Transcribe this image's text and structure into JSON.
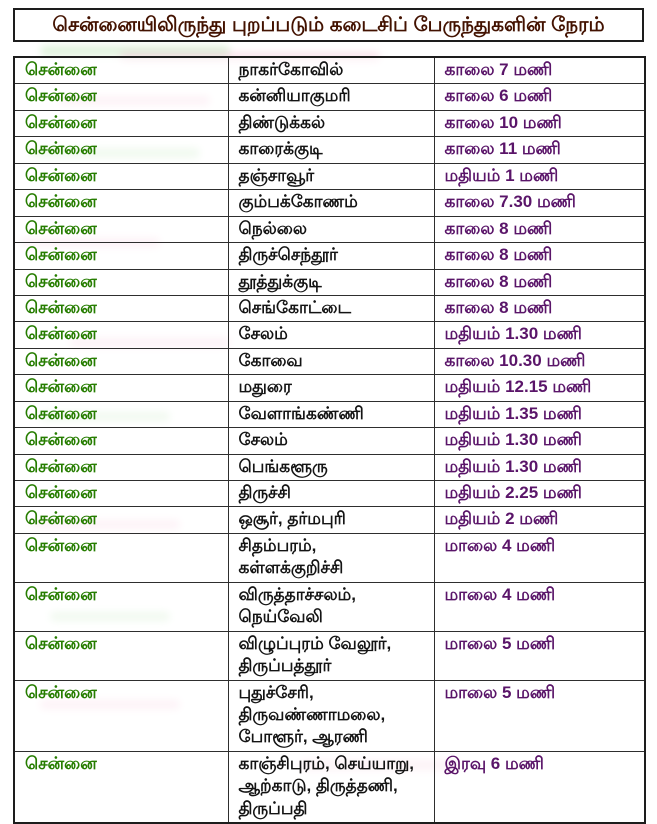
{
  "page": {
    "title": "சென்னையிலிருந்து புறப்படும் கடைசிப் பேருந்துகளின் நேரம்"
  },
  "colors": {
    "title_text": "#431200",
    "origin_text": "#267d00",
    "destination_text": "#141414",
    "time_text": "#5a1569"
  },
  "table": {
    "rows": [
      {
        "from": "சென்னை",
        "to": "நாகர்கோவில்",
        "time": "காலை 7 மணி"
      },
      {
        "from": "சென்னை",
        "to": "கன்னியாகுமரி",
        "time": "காலை 6 மணி"
      },
      {
        "from": "சென்னை",
        "to": "திண்டுக்கல்",
        "time": "காலை 10 மணி"
      },
      {
        "from": "சென்னை",
        "to": "காரைக்குடி",
        "time": "காலை 11 மணி"
      },
      {
        "from": "சென்னை",
        "to": "தஞ்சாவூர்",
        "time": "மதியம் 1 மணி"
      },
      {
        "from": "சென்னை",
        "to": "கும்பக்கோணம்",
        "time": "காலை 7.30 மணி"
      },
      {
        "from": "சென்னை",
        "to": "நெல்லை",
        "time": "காலை 8 மணி"
      },
      {
        "from": "சென்னை",
        "to": "திருச்செந்தூர்",
        "time": "காலை 8 மணி"
      },
      {
        "from": "சென்னை",
        "to": "தூத்துக்குடி",
        "time": "காலை 8 மணி"
      },
      {
        "from": "சென்னை",
        "to": "செங்கோட்டை",
        "time": "காலை 8 மணி"
      },
      {
        "from": "சென்னை",
        "to": "சேலம்",
        "time": "மதியம் 1.30 மணி"
      },
      {
        "from": "சென்னை",
        "to": "கோவை",
        "time": "காலை 10.30 மணி"
      },
      {
        "from": "சென்னை",
        "to": "மதுரை",
        "time": "மதியம் 12.15 மணி"
      },
      {
        "from": "சென்னை",
        "to": "வேளாங்கண்ணி",
        "time": "மதியம் 1.35 மணி"
      },
      {
        "from": "சென்னை",
        "to": "சேலம்",
        "time": "மதியம் 1.30 மணி"
      },
      {
        "from": "சென்னை",
        "to": "பெங்களூரு",
        "time": "மதியம் 1.30 மணி"
      },
      {
        "from": "சென்னை",
        "to": "திருச்சி",
        "time": "மதியம் 2.25 மணி"
      },
      {
        "from": "சென்னை",
        "to": "ஒசூர், தர்மபுரி",
        "time": "மதியம் 2 மணி"
      },
      {
        "from": "சென்னை",
        "to": "சிதம்பரம்,\nகள்ளக்குறிச்சி",
        "time": "மாலை 4 மணி"
      },
      {
        "from": "சென்னை",
        "to": "விருத்தாச்சலம்,\nநெய்வேலி",
        "time": "மாலை 4 மணி"
      },
      {
        "from": "சென்னை",
        "to": "விழுப்புரம் வேலூர்,\nதிருப்பத்தூர்",
        "time": "மாலை 5 மணி"
      },
      {
        "from": "சென்னை",
        "to": "புதுச்சேரி,\nதிருவண்ணாமலை,\nபோளூர், ஆரணி",
        "time": "மாலை 5 மணி"
      },
      {
        "from": "சென்னை",
        "to": "காஞ்சிபுரம், செய்யாறு,\nஆற்காடு, திருத்தணி,\nதிருப்பதி",
        "time": "இரவு 6 மணி"
      }
    ]
  }
}
